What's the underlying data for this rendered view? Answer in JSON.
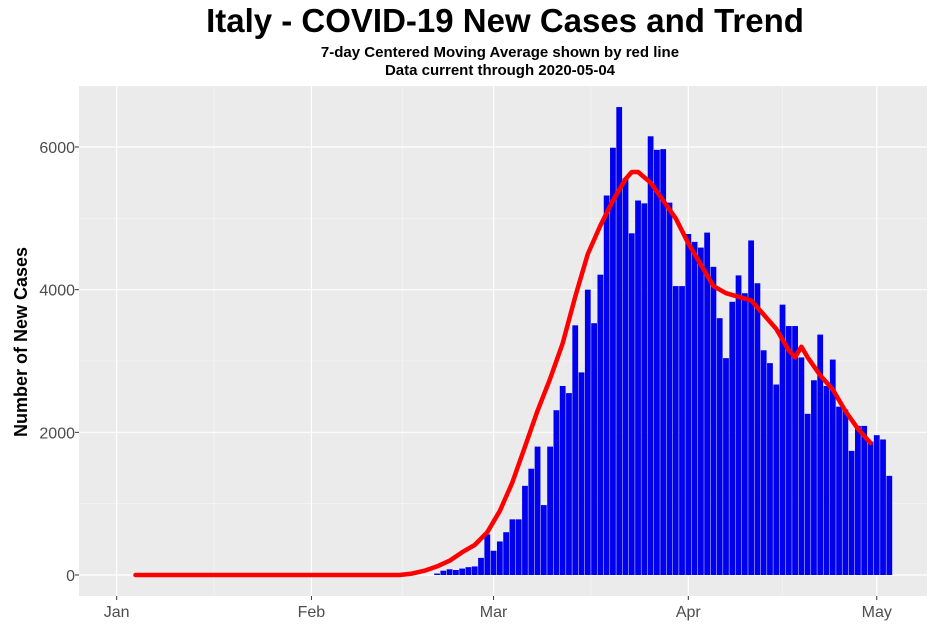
{
  "chart_data": {
    "type": "bar",
    "title": "Italy - COVID-19 New Cases and Trend",
    "subtitle_lines": [
      "7-day Centered Moving Average shown by red line",
      "Data current through 2020-05-04"
    ],
    "ylabel": "Number of New Cases",
    "xlabel": "",
    "ylim": [
      0,
      6900
    ],
    "yticks": [
      0,
      2000,
      4000,
      6000
    ],
    "ytick_labels": [
      "0",
      "2000",
      "4000",
      "6000"
    ],
    "xticks": [
      {
        "date": "2020-01-01",
        "label": "Jan"
      },
      {
        "date": "2020-02-01",
        "label": "Feb"
      },
      {
        "date": "2020-03-01",
        "label": "Mar"
      },
      {
        "date": "2020-04-01",
        "label": "Apr"
      },
      {
        "date": "2020-05-01",
        "label": "May"
      }
    ],
    "x_start": "2019-12-26",
    "x_end": "2020-05-09",
    "grid": true,
    "bar_color": "#0000EE",
    "trend_color": "#FF0000",
    "panel_color": "#EBEBEB",
    "bars": [
      {
        "date": "2020-02-21",
        "value": 20
      },
      {
        "date": "2020-02-22",
        "value": 60
      },
      {
        "date": "2020-02-23",
        "value": 80
      },
      {
        "date": "2020-02-24",
        "value": 70
      },
      {
        "date": "2020-02-25",
        "value": 90
      },
      {
        "date": "2020-02-26",
        "value": 110
      },
      {
        "date": "2020-02-27",
        "value": 120
      },
      {
        "date": "2020-02-28",
        "value": 240
      },
      {
        "date": "2020-02-29",
        "value": 570
      },
      {
        "date": "2020-03-01",
        "value": 340
      },
      {
        "date": "2020-03-02",
        "value": 470
      },
      {
        "date": "2020-03-03",
        "value": 600
      },
      {
        "date": "2020-03-04",
        "value": 780
      },
      {
        "date": "2020-03-05",
        "value": 780
      },
      {
        "date": "2020-03-06",
        "value": 1250
      },
      {
        "date": "2020-03-07",
        "value": 1490
      },
      {
        "date": "2020-03-08",
        "value": 1800
      },
      {
        "date": "2020-03-09",
        "value": 980
      },
      {
        "date": "2020-03-10",
        "value": 1800
      },
      {
        "date": "2020-03-11",
        "value": 2310
      },
      {
        "date": "2020-03-12",
        "value": 2650
      },
      {
        "date": "2020-03-13",
        "value": 2550
      },
      {
        "date": "2020-03-14",
        "value": 3500
      },
      {
        "date": "2020-03-15",
        "value": 2840
      },
      {
        "date": "2020-03-16",
        "value": 4000
      },
      {
        "date": "2020-03-17",
        "value": 3530
      },
      {
        "date": "2020-03-18",
        "value": 4210
      },
      {
        "date": "2020-03-19",
        "value": 5320
      },
      {
        "date": "2020-03-20",
        "value": 5990
      },
      {
        "date": "2020-03-21",
        "value": 6560
      },
      {
        "date": "2020-03-22",
        "value": 5560
      },
      {
        "date": "2020-03-23",
        "value": 4790
      },
      {
        "date": "2020-03-24",
        "value": 5250
      },
      {
        "date": "2020-03-25",
        "value": 5210
      },
      {
        "date": "2020-03-26",
        "value": 6150
      },
      {
        "date": "2020-03-27",
        "value": 5960
      },
      {
        "date": "2020-03-28",
        "value": 5970
      },
      {
        "date": "2020-03-29",
        "value": 5220
      },
      {
        "date": "2020-03-30",
        "value": 4050
      },
      {
        "date": "2020-03-31",
        "value": 4050
      },
      {
        "date": "2020-04-01",
        "value": 4780
      },
      {
        "date": "2020-04-02",
        "value": 4670
      },
      {
        "date": "2020-04-03",
        "value": 4590
      },
      {
        "date": "2020-04-04",
        "value": 4800
      },
      {
        "date": "2020-04-05",
        "value": 4320
      },
      {
        "date": "2020-04-06",
        "value": 3600
      },
      {
        "date": "2020-04-07",
        "value": 3040
      },
      {
        "date": "2020-04-08",
        "value": 3830
      },
      {
        "date": "2020-04-09",
        "value": 4200
      },
      {
        "date": "2020-04-10",
        "value": 3950
      },
      {
        "date": "2020-04-11",
        "value": 4690
      },
      {
        "date": "2020-04-12",
        "value": 4090
      },
      {
        "date": "2020-04-13",
        "value": 3150
      },
      {
        "date": "2020-04-14",
        "value": 2970
      },
      {
        "date": "2020-04-15",
        "value": 2670
      },
      {
        "date": "2020-04-16",
        "value": 3790
      },
      {
        "date": "2020-04-17",
        "value": 3490
      },
      {
        "date": "2020-04-18",
        "value": 3490
      },
      {
        "date": "2020-04-19",
        "value": 3050
      },
      {
        "date": "2020-04-20",
        "value": 2260
      },
      {
        "date": "2020-04-21",
        "value": 2730
      },
      {
        "date": "2020-04-22",
        "value": 3370
      },
      {
        "date": "2020-04-23",
        "value": 2650
      },
      {
        "date": "2020-04-24",
        "value": 3020
      },
      {
        "date": "2020-04-25",
        "value": 2360
      },
      {
        "date": "2020-04-26",
        "value": 2320
      },
      {
        "date": "2020-04-27",
        "value": 1740
      },
      {
        "date": "2020-04-28",
        "value": 2090
      },
      {
        "date": "2020-04-29",
        "value": 2090
      },
      {
        "date": "2020-04-30",
        "value": 1870
      },
      {
        "date": "2020-05-01",
        "value": 1960
      },
      {
        "date": "2020-05-02",
        "value": 1900
      },
      {
        "date": "2020-05-03",
        "value": 1390
      }
    ],
    "trend": [
      {
        "date": "2020-01-04",
        "value": 0
      },
      {
        "date": "2020-02-01",
        "value": 0
      },
      {
        "date": "2020-02-15",
        "value": 0
      },
      {
        "date": "2020-02-17",
        "value": 20
      },
      {
        "date": "2020-02-19",
        "value": 60
      },
      {
        "date": "2020-02-21",
        "value": 120
      },
      {
        "date": "2020-02-23",
        "value": 200
      },
      {
        "date": "2020-02-25",
        "value": 320
      },
      {
        "date": "2020-02-27",
        "value": 420
      },
      {
        "date": "2020-02-29",
        "value": 600
      },
      {
        "date": "2020-03-02",
        "value": 900
      },
      {
        "date": "2020-03-04",
        "value": 1300
      },
      {
        "date": "2020-03-06",
        "value": 1800
      },
      {
        "date": "2020-03-08",
        "value": 2300
      },
      {
        "date": "2020-03-10",
        "value": 2750
      },
      {
        "date": "2020-03-12",
        "value": 3250
      },
      {
        "date": "2020-03-14",
        "value": 3900
      },
      {
        "date": "2020-03-16",
        "value": 4500
      },
      {
        "date": "2020-03-18",
        "value": 4900
      },
      {
        "date": "2020-03-20",
        "value": 5250
      },
      {
        "date": "2020-03-22",
        "value": 5550
      },
      {
        "date": "2020-03-23",
        "value": 5650
      },
      {
        "date": "2020-03-24",
        "value": 5650
      },
      {
        "date": "2020-03-26",
        "value": 5500
      },
      {
        "date": "2020-03-28",
        "value": 5250
      },
      {
        "date": "2020-03-30",
        "value": 5000
      },
      {
        "date": "2020-04-01",
        "value": 4650
      },
      {
        "date": "2020-04-03",
        "value": 4350
      },
      {
        "date": "2020-04-05",
        "value": 4050
      },
      {
        "date": "2020-04-07",
        "value": 3950
      },
      {
        "date": "2020-04-09",
        "value": 3900
      },
      {
        "date": "2020-04-11",
        "value": 3850
      },
      {
        "date": "2020-04-13",
        "value": 3650
      },
      {
        "date": "2020-04-15",
        "value": 3450
      },
      {
        "date": "2020-04-17",
        "value": 3150
      },
      {
        "date": "2020-04-18",
        "value": 3050
      },
      {
        "date": "2020-04-19",
        "value": 3200
      },
      {
        "date": "2020-04-20",
        "value": 3050
      },
      {
        "date": "2020-04-22",
        "value": 2800
      },
      {
        "date": "2020-04-24",
        "value": 2600
      },
      {
        "date": "2020-04-26",
        "value": 2300
      },
      {
        "date": "2020-04-28",
        "value": 2050
      },
      {
        "date": "2020-04-30",
        "value": 1850
      }
    ]
  }
}
